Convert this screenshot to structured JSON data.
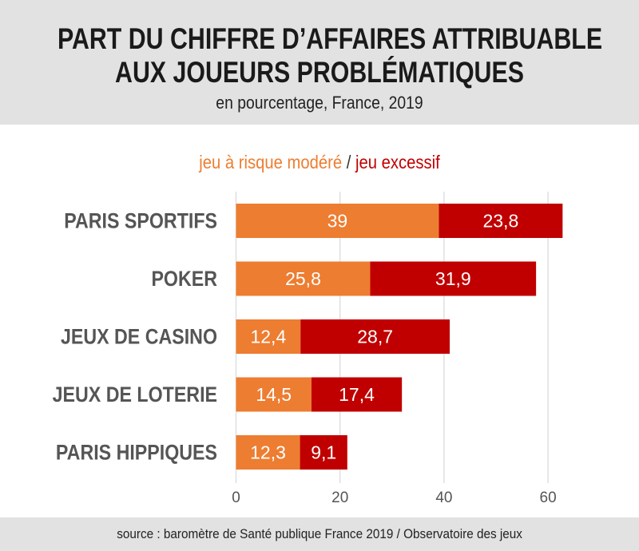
{
  "chart_data": {
    "type": "bar",
    "orientation": "horizontal",
    "stacked": true,
    "title": "PART DU CHIFFRE D’AFFAIRES ATTRIBUABLE AUX JOUEURS PROBLÉMATIQUES",
    "title_lines": [
      "PART DU CHIFFRE D’AFFAIRES ATTRIBUABLE",
      "AUX JOUEURS PROBLÉMATIQUES"
    ],
    "subtitle": "en pourcentage, France, 2019",
    "categories": [
      "PARIS SPORTIFS",
      "POKER",
      "JEUX DE CASINO",
      "JEUX DE LOTERIE",
      "PARIS HIPPIQUES"
    ],
    "series": [
      {
        "name": "jeu à risque modéré",
        "color": "#ed7d31",
        "values": [
          39,
          25.8,
          12.4,
          14.5,
          12.3
        ],
        "labels": [
          "39",
          "25,8",
          "12,4",
          "14,5",
          "12,3"
        ]
      },
      {
        "name": "jeu excessif",
        "color": "#c00000",
        "values": [
          23.8,
          31.9,
          28.7,
          17.4,
          9.1
        ],
        "labels": [
          "23,8",
          "31,9",
          "28,7",
          "17,4",
          "9,1"
        ]
      }
    ],
    "legend_separator": "/",
    "xlim": [
      0,
      63
    ],
    "xticks": [
      0,
      20,
      40,
      60
    ],
    "xtick_labels": [
      "0",
      "20",
      "40",
      "60"
    ],
    "grid": true,
    "legend_placement": "top-center",
    "source": "source : baromètre de Santé publique France 2019 / Observatoire des jeux"
  }
}
